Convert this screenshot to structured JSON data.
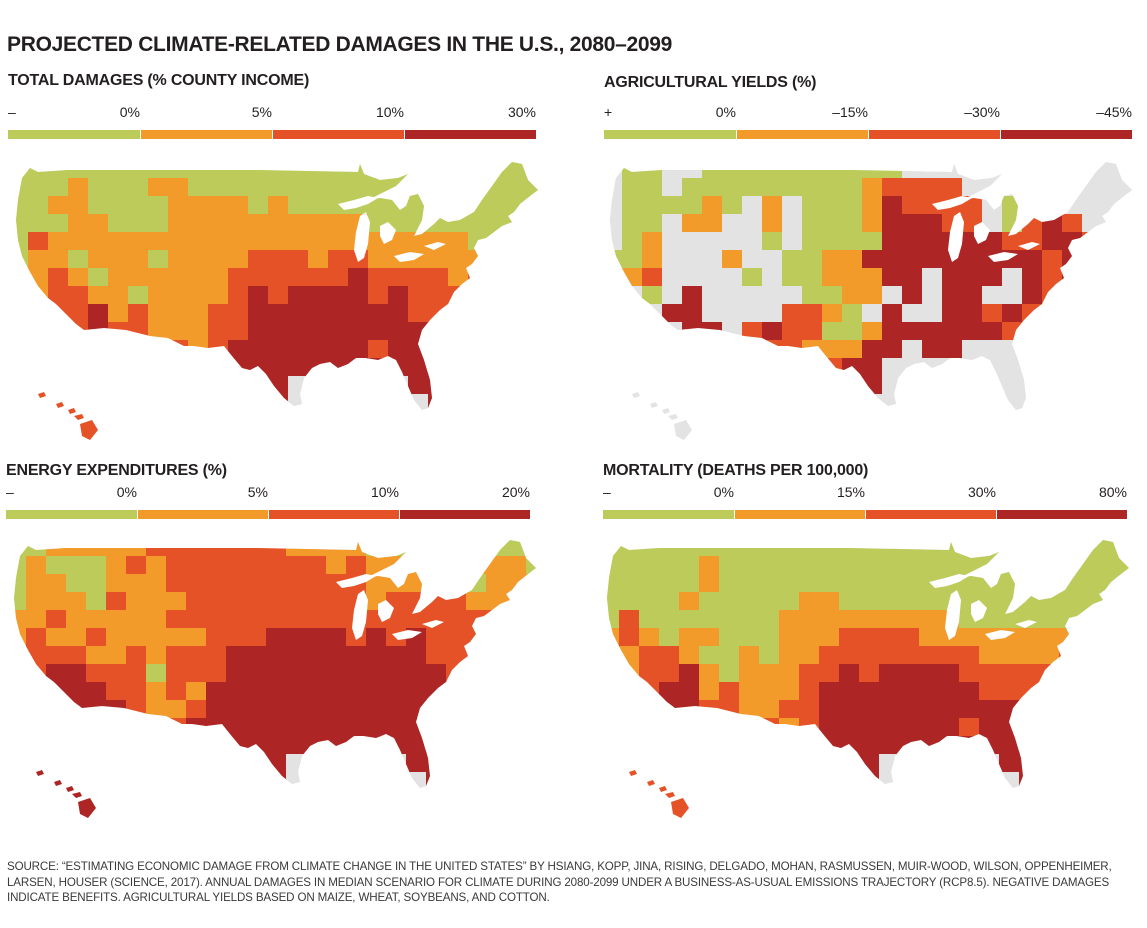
{
  "title": "PROJECTED CLIMATE-RELATED DAMAGES IN THE U.S., 2080–2099",
  "classes": {
    "colors": [
      "#bccb5a",
      "#f29b2b",
      "#e55227",
      "#ad2524"
    ],
    "no_data_color": "#e3e3e3"
  },
  "panels": [
    {
      "id": "total-damages",
      "title": "TOTAL DAMAGES (% COUNTY INCOME)",
      "legend_labels": [
        "–",
        "0%",
        "5%",
        "10%",
        "30%"
      ],
      "grid": [
        "000000000000000000000000000",
        "000100011000000000000000000",
        "001100001111010000000000000",
        "000110001111111111000000000",
        "021111111111111111111110000",
        "011011101111222122111111110",
        "012101111112222223222212211",
        "112211011112323333232222222",
        "112231211122333333332222222",
        "n12232211122333333333222222",
        "nn2232222123333333233322nnn",
        "nnnn22nn2233333333333322nnn",
        "nnnnnnnnnn3333n333nn33nnnnn",
        "nnnnnnnnnnn333nnnnnnn33nnnn"
      ],
      "hawaii_class": 2
    },
    {
      "id": "agricultural-yields",
      "title": "AGRICULTURAL YIELDS (%)",
      "legend_labels": [
        "+",
        "0%",
        "–15%",
        "–30%",
        "–45%"
      ],
      "grid": [
        "n00nn0000000000nnnnnnnnnnnn",
        "n00n00000000012222nnnnnnnnn",
        "n000010n1n000132222n0nnnnnn",
        "n00n11nn1n000133322n0232nnn",
        "n01nnnnn0n000033333322332nn",
        "001nnn1nn001133333333323332",
        "012nnnn0n0011133n333n323332",
        "0n0n3nnnnn0011n3n33nn3223nn",
        "nnn33nnnn2210n3nn3323222nnn",
        "nnnn33n2322001333333212nnnn",
        "nnnnnnnn2211133n33nnn2nnnnn",
        "nnnnnnnnnnn233nnnnnnnnnnnnn",
        "nnnnnnnnnnnn33nnnnnnnnnnnnn",
        "nnnnnnnnnnnnnnnnnnnnnnnnnnn"
      ],
      "hawaii_class": "n"
    },
    {
      "id": "energy-expenditures",
      "title": "ENERGY EXPENDITURES (%)",
      "legend_labels": [
        "–",
        "0%",
        "5%",
        "10%",
        "20%"
      ],
      "grid": [
        "001111122222221111000000000",
        "010001212222222212111111110",
        "011001112222222222111110111",
        "011102111222222222122221111",
        "112111112222222222222222211",
        "121121111122233332323222221",
        "122211212223333333333222222",
        "123322202223333333333322222",
        "n23332212133333333333332222",
        "nn33332112333333333333322nn",
        "nnn333332333333333333333nnn",
        "nnnnn3nn3333333333333333nnn",
        "nnnnnnnnnn3333n333nn33nnnnn",
        "nnnnnnnnnnn333nnnnnnn33nnnn"
      ],
      "hawaii_class": 3
    },
    {
      "id": "mortality",
      "title": "MORTALITY (DEATHS PER 100,000)",
      "legend_labels": [
        "–",
        "0%",
        "15%",
        "30%",
        "80%"
      ],
      "grid": [
        "000000000000000000000000000",
        "000001000000000000000000000",
        "000001000000000000000000000",
        "000010000011000000000000000",
        "020000000111111111000000000",
        "121011000111222211111111110",
        "112210010112222222211112111",
        "112231011122323333222222222",
        "112331211123333333322222222",
        "n12332211223333333333222222",
        "nn2332222123333333233322nnn",
        "nnnn33nn2233333333333332nnn",
        "nnnnnnnnnn3333n333nn33nnnnn",
        "nnnnnnnnnnn333nnnnnnn33nnnn"
      ],
      "hawaii_class": 2
    }
  ],
  "source": "SOURCE: “ESTIMATING ECONOMIC DAMAGE FROM CLIMATE CHANGE IN THE UNITED STATES” BY HSIANG, KOPP, JINA, RISING, DELGADO, MOHAN, RASMUSSEN, MUIR-WOOD, WILSON, OPPENHEIMER, LARSEN, HOUSER (SCIENCE, 2017). ANNUAL DAMAGES IN MEDIAN SCENARIO FOR CLIMATE DURING 2080-2099 UNDER A BUSINESS-AS-USUAL EMISSIONS TRAJECTORY (RCP8.5). NEGATIVE DAMAGES INDICATE BENEFITS. AGRICULTURAL YIELDS BASED ON MAIZE, WHEAT, SOYBEANS, AND COTTON."
}
